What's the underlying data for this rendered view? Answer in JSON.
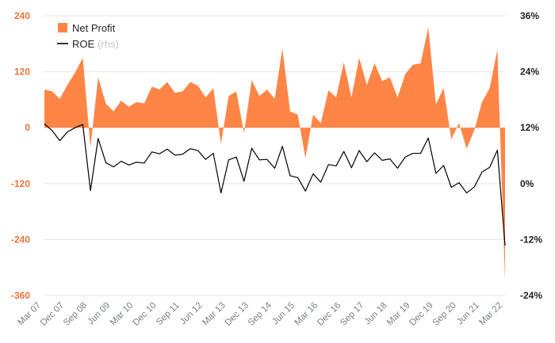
{
  "chart_data": {
    "type": "bar+line",
    "x_tick_labels": [
      "Mar 07",
      "Dec 07",
      "Sep 08",
      "Jun 09",
      "Mar 10",
      "Dec 10",
      "Sep 11",
      "Jun 12",
      "Mar 13",
      "Dec 13",
      "Sep 14",
      "Jun 15",
      "Mar 16",
      "Dec 16",
      "Sep 17",
      "Jun 18",
      "Mar 19",
      "Dec 19",
      "Sep 20",
      "Jun 21",
      "Mar 22"
    ],
    "y_left": {
      "ticks": [
        240,
        120,
        0,
        -120,
        -240,
        -360
      ],
      "lim": [
        -360,
        240
      ]
    },
    "y_right": {
      "ticks": [
        "36%",
        "24%",
        "12%",
        "0%",
        "-12%",
        "-24%"
      ],
      "lim": [
        -24,
        36
      ]
    },
    "grid": true,
    "legend": {
      "position": "top-left",
      "net_profit_label": "Net Profit",
      "roe_label": "ROE",
      "roe_suffix": "(rhs)"
    },
    "colors": {
      "net_profit": "#ff8547",
      "roe": "#000000",
      "left_axis": "#e8743b",
      "grid": "#e6e6e6"
    },
    "series": [
      {
        "name": "Net Profit",
        "axis": "left",
        "kind": "area",
        "values": [
          82,
          78,
          62,
          92,
          118,
          150,
          -42,
          108,
          52,
          35,
          58,
          45,
          55,
          52,
          88,
          82,
          98,
          75,
          78,
          98,
          90,
          65,
          85,
          -35,
          68,
          78,
          -12,
          102,
          68,
          82,
          62,
          170,
          35,
          28,
          -65,
          28,
          10,
          80,
          65,
          140,
          65,
          150,
          92,
          138,
          100,
          108,
          65,
          115,
          135,
          138,
          215,
          50,
          85,
          -25,
          10,
          -45,
          -5,
          55,
          85,
          168,
          -330
        ]
      },
      {
        "name": "ROE",
        "axis": "right",
        "kind": "line",
        "values": [
          12.8,
          11.4,
          9.2,
          11.1,
          12.0,
          12.7,
          -1.5,
          9.7,
          4.5,
          3.6,
          4.8,
          4.0,
          4.6,
          4.4,
          6.8,
          6.4,
          7.4,
          6.1,
          6.3,
          7.5,
          7.1,
          5.2,
          6.5,
          -2.0,
          5.1,
          5.7,
          0.5,
          7.6,
          5.1,
          5.2,
          3.3,
          8.0,
          1.7,
          1.3,
          -1.6,
          2.1,
          0.3,
          4.1,
          3.8,
          6.9,
          3.4,
          7.1,
          4.7,
          6.6,
          5.0,
          5.3,
          3.3,
          5.7,
          6.5,
          6.5,
          9.8,
          2.2,
          3.9,
          -0.8,
          0.2,
          -2.0,
          -0.7,
          2.5,
          3.5,
          7.2,
          -13.3
        ]
      }
    ]
  }
}
